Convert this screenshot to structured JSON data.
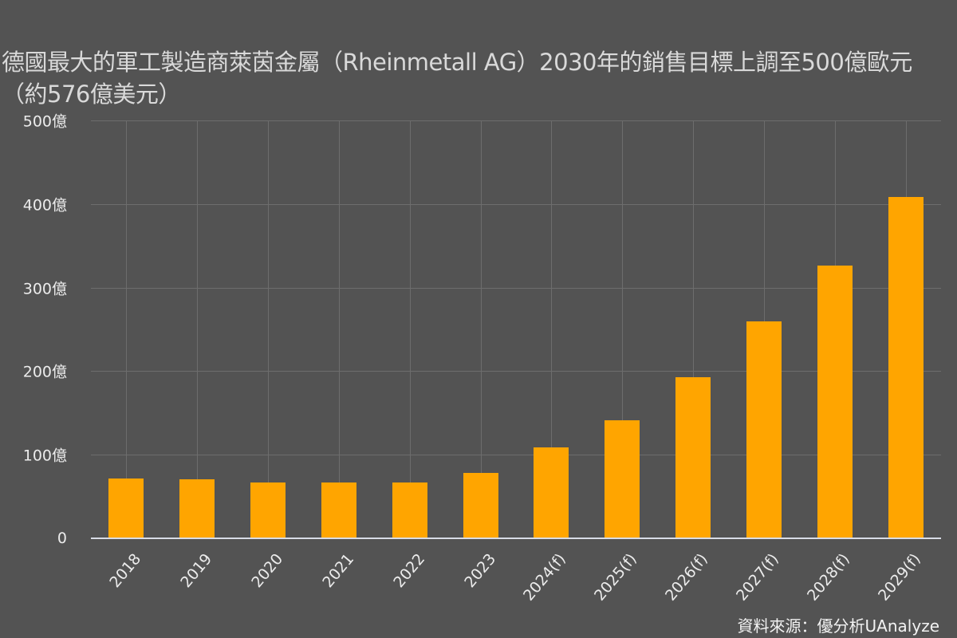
{
  "title": "德國最大的軍工製造商萊茵金屬（Rheinmetall AG）2030年的銷售目標上調至500億歐元（約576億美元）",
  "source": "資料來源：優分析UAnalyze",
  "colors": {
    "background": "#535353",
    "bar": "#ffa500",
    "grid": "#6d6d6d",
    "axis": "#d8dce6"
  },
  "chart_data": {
    "type": "bar",
    "title": "德國最大的軍工製造商萊茵金屬（Rheinmetall AG）2030年的銷售目標上調至500億歐元（約576億美元）",
    "xlabel": "",
    "ylabel": "",
    "categories": [
      "2018",
      "2019",
      "2020",
      "2021",
      "2022",
      "2023",
      "2024(f)",
      "2025(f)",
      "2026(f)",
      "2027(f)",
      "2028(f)",
      "2029(f)"
    ],
    "values": [
      72,
      71,
      67,
      67,
      67,
      78,
      109,
      141,
      193,
      260,
      326,
      408
    ],
    "unit": "億",
    "ylim": [
      0,
      500
    ],
    "yticks": [
      0,
      100,
      200,
      300,
      400,
      500
    ],
    "ytick_labels": [
      "0",
      "100億",
      "200億",
      "300億",
      "400億",
      "500億"
    ],
    "grid": true,
    "legend": null,
    "annotations": [
      "資料來源：優分析UAnalyze"
    ]
  }
}
